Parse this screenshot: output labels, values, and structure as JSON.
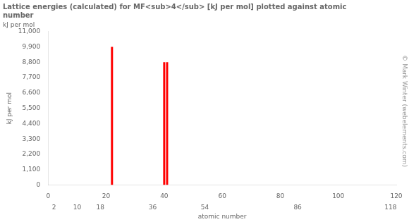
{
  "chart_data": {
    "type": "bar",
    "title": "Lattice energies (calculated) for MF<sub>4</sub> [kJ per mol] plotted against atomic\nnumber",
    "ylabel": "kJ per mol",
    "xlabel": "atomic number",
    "annotations": [
      "© Mark Winter (webelements.com)"
    ],
    "x": [
      22,
      40,
      41
    ],
    "values": [
      9908,
      8800,
      8800
    ],
    "color": "#ff0000",
    "xlim": [
      0,
      120
    ],
    "xticks": [
      0,
      20,
      40,
      60,
      80,
      100,
      120
    ],
    "x2lim": [
      0,
      120
    ],
    "x2ticks": [
      2,
      10,
      18,
      36,
      54,
      86,
      118
    ],
    "ylim": [
      0,
      11000
    ],
    "yticks": [
      0,
      1100,
      2200,
      3300,
      4400,
      5500,
      6600,
      7700,
      8800,
      9900,
      11000
    ],
    "grid": false
  }
}
